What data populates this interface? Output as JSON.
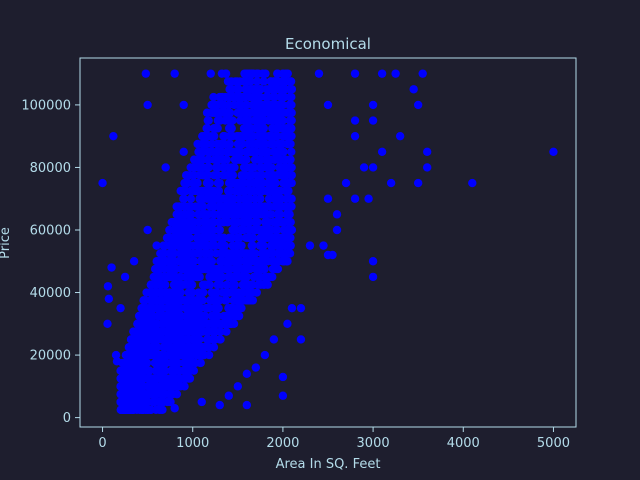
{
  "chart_data": {
    "type": "scatter",
    "title": "Economical",
    "xlabel": "Area In SQ. Feet",
    "ylabel": "Price",
    "xlim": [
      -250,
      5250
    ],
    "ylim": [
      -3000,
      115000
    ],
    "x_ticks": [
      0,
      1000,
      2000,
      3000,
      4000,
      5000
    ],
    "y_ticks": [
      0,
      20000,
      40000,
      60000,
      80000,
      100000
    ],
    "grid": false,
    "marker_color": "#0000ff",
    "background_color": "#1e1e2e",
    "axis_color": "#b4dcea",
    "series": [
      {
        "points": [
          [
            0,
            75000
          ],
          [
            120,
            90000
          ],
          [
            60,
            42000
          ],
          [
            70,
            38000
          ],
          [
            55,
            30000
          ],
          [
            100,
            48000
          ],
          [
            4100,
            75000
          ],
          [
            5000,
            85000
          ],
          [
            3000,
            45000
          ],
          [
            3000,
            50000
          ],
          [
            2500,
            52000
          ],
          [
            2450,
            55000
          ],
          [
            2200,
            25000
          ],
          [
            2000,
            13000
          ],
          [
            2000,
            7000
          ],
          [
            1600,
            14000
          ],
          [
            1600,
            4000
          ],
          [
            1300,
            4000
          ],
          [
            3500,
            100000
          ],
          [
            3600,
            85000
          ],
          [
            3600,
            80000
          ],
          [
            3500,
            75000
          ],
          [
            3300,
            90000
          ],
          [
            3450,
            105000
          ],
          [
            3550,
            110000
          ],
          [
            3250,
            110000
          ],
          [
            3200,
            75000
          ],
          [
            3000,
            80000
          ],
          [
            2950,
            70000
          ],
          [
            2800,
            70000
          ],
          [
            2600,
            65000
          ],
          [
            2500,
            70000
          ],
          [
            2550,
            52000
          ],
          [
            2700,
            75000
          ],
          [
            2900,
            80000
          ],
          [
            3100,
            85000
          ],
          [
            3000,
            100000
          ],
          [
            2800,
            90000
          ],
          [
            2600,
            60000
          ],
          [
            2200,
            35000
          ],
          [
            2300,
            55000
          ],
          [
            2100,
            35000
          ],
          [
            2050,
            30000
          ],
          [
            1900,
            25000
          ],
          [
            1800,
            20000
          ],
          [
            1700,
            16000
          ],
          [
            1500,
            10000
          ],
          [
            1400,
            7000
          ],
          [
            1100,
            5000
          ],
          [
            800,
            3000
          ],
          [
            300,
            3000
          ],
          [
            450,
            6000
          ],
          [
            600,
            8000
          ],
          [
            900,
            85000
          ],
          [
            700,
            80000
          ],
          [
            500,
            60000
          ],
          [
            350,
            50000
          ],
          [
            250,
            45000
          ],
          [
            200,
            35000
          ],
          [
            150,
            20000
          ],
          [
            160,
            18000
          ],
          [
            480,
            110000
          ],
          [
            800,
            110000
          ],
          [
            1200,
            110000
          ],
          [
            1600,
            110000
          ],
          [
            2000,
            110000
          ],
          [
            2400,
            110000
          ],
          [
            2800,
            110000
          ],
          [
            3100,
            110000
          ],
          [
            500,
            100000
          ],
          [
            900,
            100000
          ],
          [
            1400,
            100000
          ],
          [
            2000,
            100000
          ],
          [
            2500,
            100000
          ],
          [
            3000,
            95000
          ],
          [
            2800,
            95000
          ],
          [
            900,
            30000
          ],
          [
            1000,
            50000
          ],
          [
            1200,
            70000
          ],
          [
            1400,
            80000
          ],
          [
            1500,
            90000
          ],
          [
            800,
            20000
          ],
          [
            700,
            40000
          ],
          [
            600,
            55000
          ],
          [
            1100,
            40000
          ],
          [
            1300,
            60000
          ]
        ]
      }
    ]
  }
}
